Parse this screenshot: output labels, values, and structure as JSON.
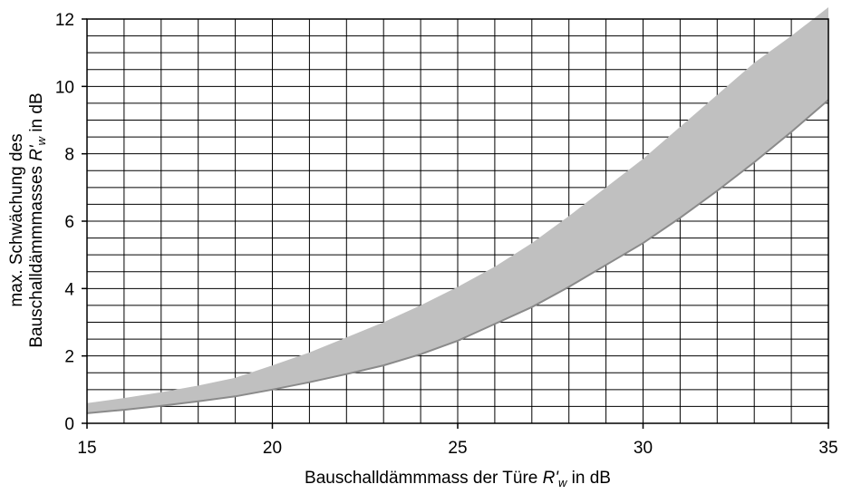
{
  "chart_data": {
    "type": "area",
    "title": "",
    "xlabel": {
      "main": "Bauschalldämmmass der Türe ",
      "symbol": "R'",
      "sub": "w",
      "unit": " in dB"
    },
    "ylabel": {
      "line1": "max. Schwächung des",
      "line2_main": "Bauschalldämmmasses ",
      "line2_symbol": "R'",
      "line2_sub": "w",
      "line2_unit": " in dB"
    },
    "xlim": [
      15,
      35
    ],
    "ylim": [
      0,
      12
    ],
    "x_major_ticks": [
      15,
      20,
      25,
      30,
      35
    ],
    "y_major_ticks": [
      0,
      2,
      4,
      6,
      8,
      10,
      12
    ],
    "x_minor_step": 1,
    "y_minor_step": 1,
    "grid": true,
    "band": {
      "fill_color": "#c0c0c0",
      "lower_edge_color": "#8a8a8a",
      "x": [
        15,
        16,
        17,
        18,
        19,
        20,
        21,
        22,
        23,
        24,
        25,
        26,
        27,
        28,
        29,
        30,
        31,
        32,
        33,
        34,
        35
      ],
      "lower": [
        0.3,
        0.4,
        0.52,
        0.65,
        0.8,
        1.0,
        1.22,
        1.46,
        1.72,
        2.05,
        2.45,
        2.95,
        3.45,
        4.05,
        4.7,
        5.35,
        6.1,
        6.9,
        7.75,
        8.65,
        9.6
      ],
      "upper": [
        0.6,
        0.75,
        0.92,
        1.12,
        1.35,
        1.72,
        2.1,
        2.55,
        3.0,
        3.5,
        4.05,
        4.65,
        5.35,
        6.15,
        7.0,
        7.85,
        8.8,
        9.75,
        10.7,
        11.5,
        12.35
      ]
    }
  }
}
